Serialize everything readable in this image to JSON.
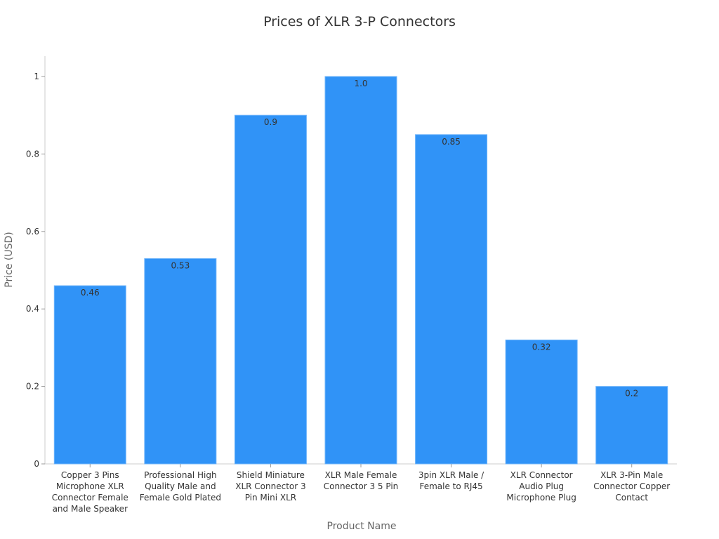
{
  "chart_data": {
    "type": "bar",
    "title": "Prices of XLR 3-P Connectors",
    "xlabel": "Product Name",
    "ylabel": "Price (USD)",
    "ylim": [
      0,
      1.05
    ],
    "yticks": [
      0,
      0.2,
      0.4,
      0.6,
      0.8,
      1
    ],
    "ytick_labels": [
      "0",
      "0.2",
      "0.4",
      "0.6",
      "0.8",
      "1"
    ],
    "grid": false,
    "categories": [
      "Copper 3 Pins Microphone XLR Connector Female and Male Speaker",
      "Professional High Quality Male and Female Gold Plated",
      "Shield Miniature XLR Connector 3 Pin Mini XLR",
      "XLR Male Female Connector 3 5 Pin",
      "3pin XLR Male / Female to RJ45",
      "XLR Connector Audio Plug Microphone Plug",
      "XLR 3-Pin Male Connector Copper Contact"
    ],
    "values": [
      0.46,
      0.53,
      0.9,
      1.0,
      0.85,
      0.32,
      0.2
    ],
    "data_labels": [
      "0.46",
      "0.53",
      "0.9",
      "1.0",
      "0.85",
      "0.32",
      "0.2"
    ],
    "bar_color": "#3093f7"
  }
}
